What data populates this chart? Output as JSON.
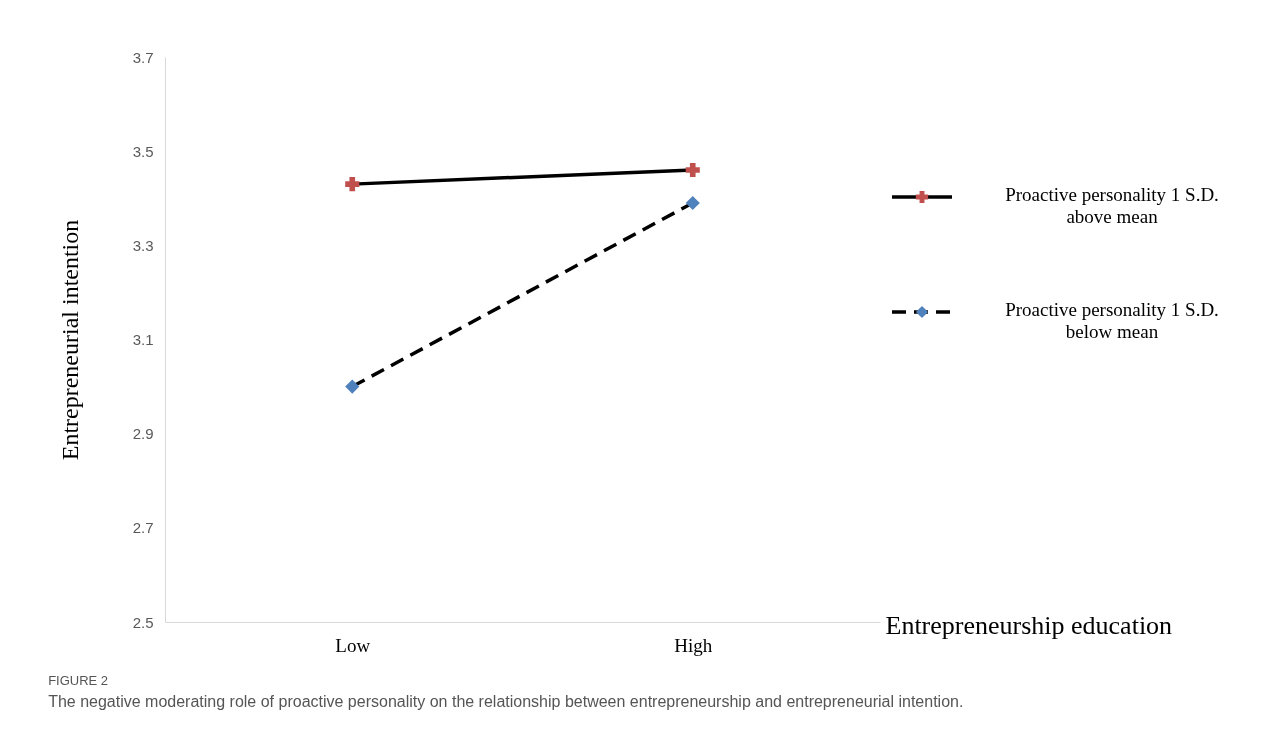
{
  "chart_data": {
    "type": "line",
    "categories": [
      "Low",
      "High"
    ],
    "xlabel": "Entrepreneurship education",
    "ylabel": "Entrepreneurial intention",
    "ylim": [
      2.5,
      3.7
    ],
    "yticks": [
      2.5,
      2.7,
      2.9,
      3.1,
      3.3,
      3.5,
      3.7
    ],
    "grid": false,
    "legend": "right",
    "series": [
      {
        "name": "Proactive personality 1 S.D. above mean",
        "color": "#c0504d",
        "marker": "cross",
        "line_style": "solid",
        "values": [
          3.43,
          3.46
        ]
      },
      {
        "name": "Proactive personality 1 S.D. below mean",
        "color": "#4f81bd",
        "marker": "diamond",
        "line_style": "dashed",
        "values": [
          3.0,
          3.39
        ]
      }
    ],
    "annotations": [
      "FIGURE 2",
      "The negative moderating role of proactive personality on the relationship between entrepreneurship and entrepreneurial intention."
    ]
  }
}
